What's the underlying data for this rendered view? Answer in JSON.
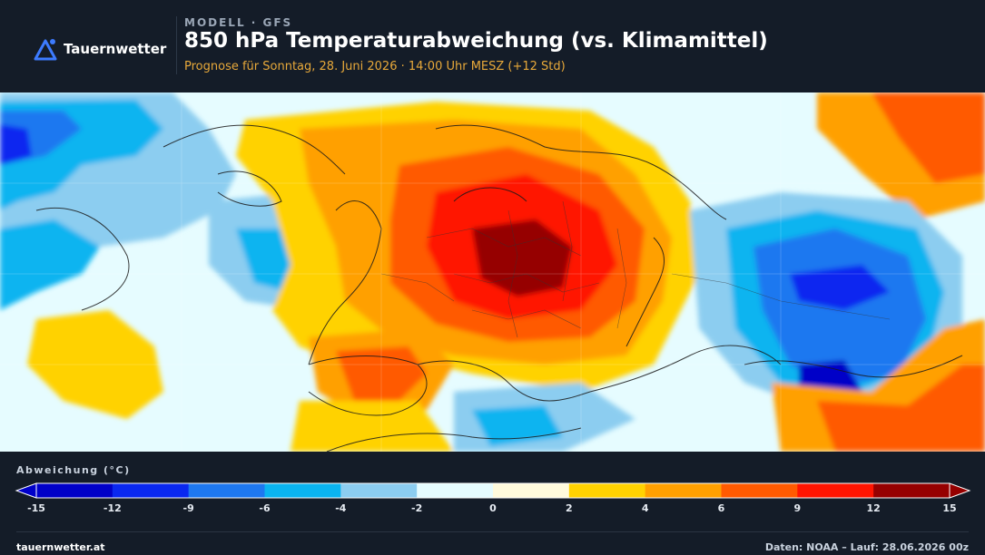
{
  "header": {
    "brand": "Tauernwetter",
    "kicker": "MODELL · GFS",
    "title": "850 hPa Temperaturabweichung (vs. Klimamittel)",
    "subtitle": "Prognose für Sonntag, 28. Juni 2026 · 14:00 Uhr MESZ  (+12 Std)"
  },
  "legend": {
    "label": "Abweichung (°C)",
    "ticks": [
      "-15",
      "-12",
      "-9",
      "-6",
      "-4",
      "-2",
      "0",
      "2",
      "4",
      "6",
      "9",
      "12",
      "15"
    ],
    "colors": [
      "#0000c8",
      "#0a28f0",
      "#1e78f0",
      "#0ab4f0",
      "#8ccdf0",
      "#e6fcff",
      "#fffadc",
      "#ffd200",
      "#ffa000",
      "#ff5a00",
      "#ff1400",
      "#960000"
    ]
  },
  "map": {
    "colors": {
      "deep_cold": "#0000c8",
      "cold": "#0a28f0",
      "cool": "#1e78f0",
      "mild_cool": "#0ab4f0",
      "slight_cool": "#8ccdf0",
      "neutral_cool": "#e6fcff",
      "neutral_warm": "#fffadc",
      "slight_warm": "#ffd200",
      "warm": "#ffa000",
      "hot": "#ff5a00",
      "very_hot": "#ff1400",
      "extreme": "#960000"
    }
  },
  "footer": {
    "site": "tauernwetter.at",
    "source": "Daten: NOAA – Lauf: 28.06.2026 00z"
  }
}
